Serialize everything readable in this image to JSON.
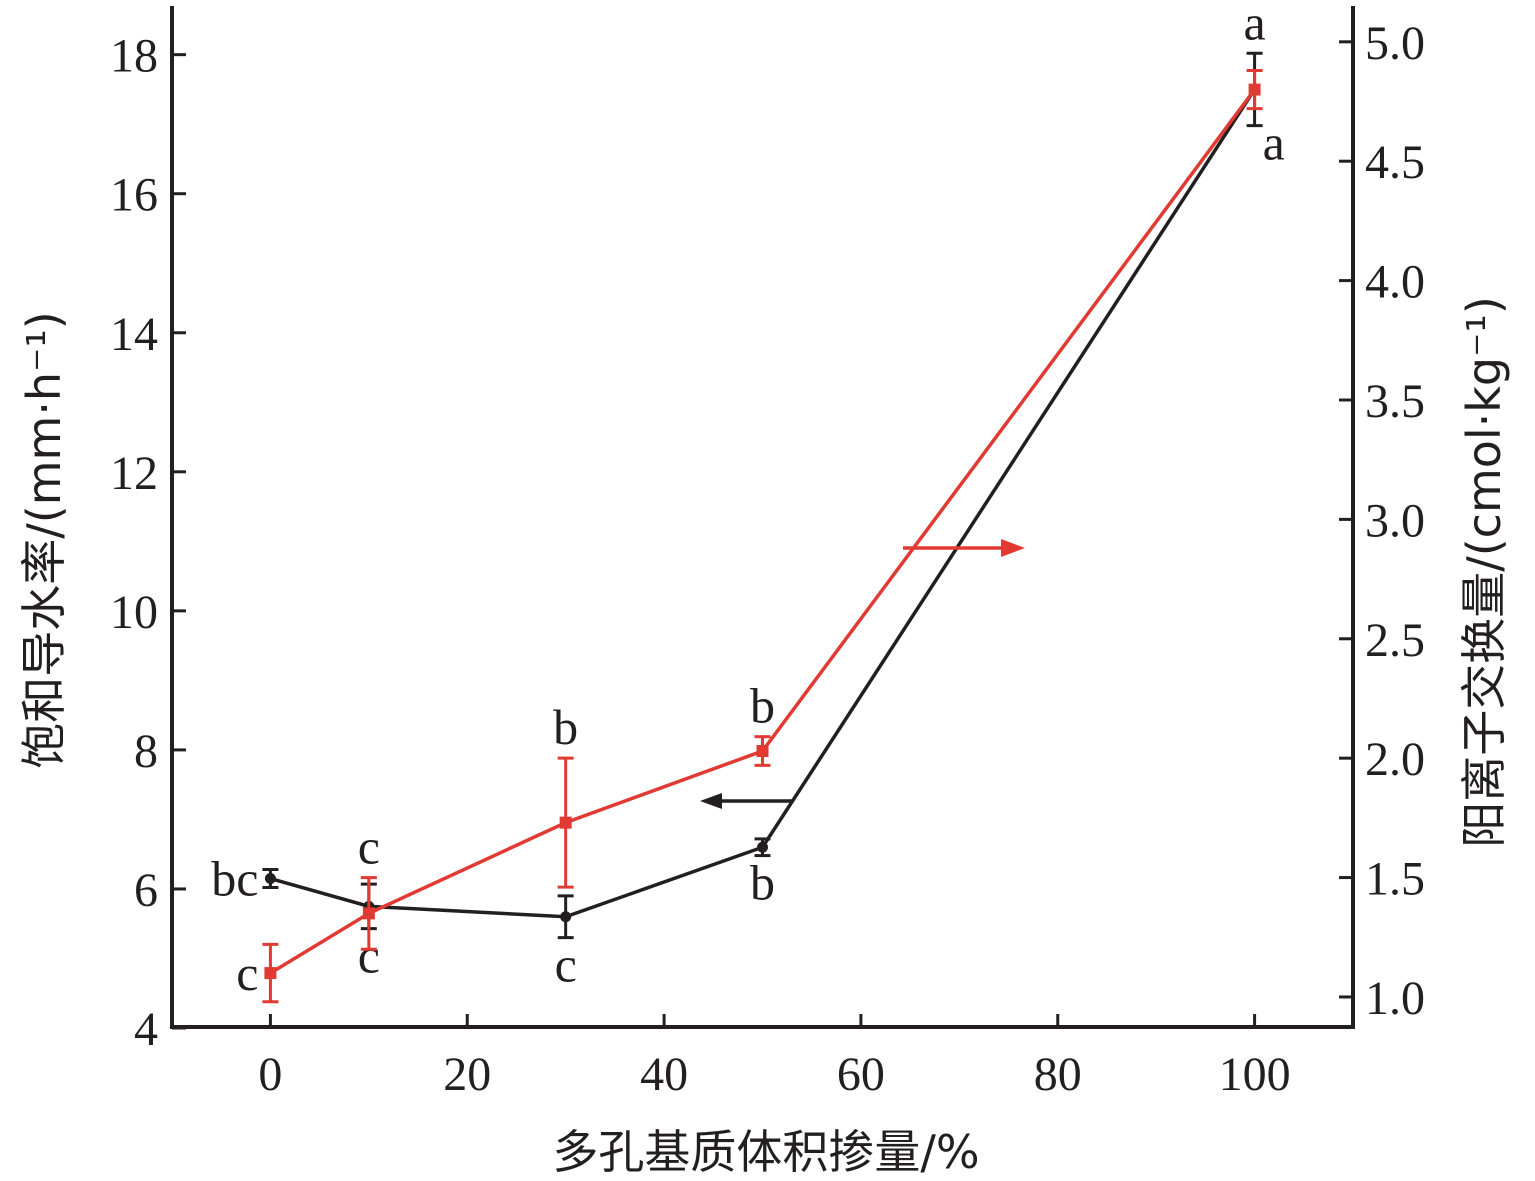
{
  "chart_data": {
    "type": "line",
    "xlabel": "多孔基质体积掺量/%",
    "ylabel_left": "饱和导水率/(mm·h⁻¹)",
    "ylabel_right": "阳离子交换量/(cmol·kg⁻¹)",
    "x_ticks": [
      0,
      20,
      40,
      60,
      80,
      100
    ],
    "y_left_ticks": [
      4,
      6,
      8,
      10,
      12,
      14,
      16,
      18
    ],
    "y_right_ticks": [
      "1.0",
      "1.5",
      "2.0",
      "2.5",
      "3.0",
      "3.5",
      "4.0",
      "4.5",
      "5.0"
    ],
    "xlim": [
      -10,
      110
    ],
    "ylim_left": [
      4,
      18.7
    ],
    "ylim_right": [
      0.87,
      5.15
    ],
    "grid": false,
    "series": [
      {
        "axis": "left",
        "color": "#231f20",
        "marker": "circle",
        "points": [
          {
            "x": 0,
            "y": 6.15,
            "err": 0.13,
            "label": "bc",
            "label_pos": "left"
          },
          {
            "x": 10,
            "y": 5.75,
            "err": 0.32,
            "label": "c",
            "label_pos": "below"
          },
          {
            "x": 30,
            "y": 5.6,
            "err": 0.3,
            "label": "c",
            "label_pos": "below"
          },
          {
            "x": 50,
            "y": 6.6,
            "err": 0.12,
            "label": "b",
            "label_pos": "below"
          },
          {
            "x": 100,
            "y": 17.5,
            "err": 0.52,
            "label": "a",
            "label_pos": "above"
          }
        ]
      },
      {
        "axis": "right",
        "color": "#e03a33",
        "marker": "square",
        "points": [
          {
            "x": 0,
            "y": 1.1,
            "err": 0.12,
            "label": "c",
            "label_pos": "left"
          },
          {
            "x": 10,
            "y": 1.35,
            "err": 0.15,
            "label": "c",
            "label_pos": "above"
          },
          {
            "x": 30,
            "y": 1.73,
            "err": 0.27,
            "label": "b",
            "label_pos": "above"
          },
          {
            "x": 50,
            "y": 2.03,
            "err": 0.06,
            "label": "b",
            "label_pos": "above"
          },
          {
            "x": 100,
            "y": 4.8,
            "err": 0.08,
            "label": "a",
            "label_pos": "below-right"
          }
        ]
      }
    ],
    "annotations": [
      {
        "type": "arrow",
        "direction": "left",
        "color": "#231f20",
        "refers_to": "left-axis"
      },
      {
        "type": "arrow",
        "direction": "right",
        "color": "#e03a33",
        "refers_to": "right-axis"
      }
    ]
  }
}
